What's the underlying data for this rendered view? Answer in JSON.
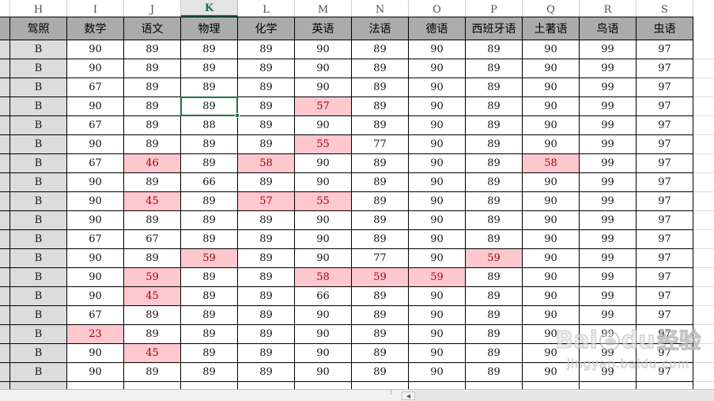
{
  "app": {
    "title": "spreadsheet-grades-view"
  },
  "grid": {
    "column_letters": [
      "H",
      "I",
      "J",
      "K",
      "L",
      "M",
      "N",
      "O",
      "P",
      "Q",
      "R",
      "S"
    ],
    "headers": [
      "驾照",
      "数学",
      "语文",
      "物理",
      "化学",
      "英语",
      "法语",
      "德语",
      "西班牙语",
      "土著语",
      "鸟语",
      "虫语"
    ],
    "rows": [
      [
        "B",
        "90",
        "89",
        "89",
        "89",
        "90",
        "89",
        "90",
        "89",
        "90",
        "99",
        "97"
      ],
      [
        "B",
        "90",
        "89",
        "89",
        "89",
        "90",
        "89",
        "90",
        "89",
        "90",
        "99",
        "97"
      ],
      [
        "B",
        "67",
        "89",
        "89",
        "89",
        "90",
        "89",
        "90",
        "89",
        "90",
        "99",
        "97"
      ],
      [
        "B",
        "90",
        "89",
        "89",
        "89",
        "57",
        "89",
        "90",
        "89",
        "90",
        "99",
        "97"
      ],
      [
        "B",
        "67",
        "89",
        "88",
        "89",
        "90",
        "89",
        "90",
        "89",
        "90",
        "99",
        "97"
      ],
      [
        "B",
        "90",
        "89",
        "89",
        "89",
        "55",
        "77",
        "90",
        "89",
        "90",
        "99",
        "97"
      ],
      [
        "B",
        "67",
        "46",
        "89",
        "58",
        "90",
        "89",
        "90",
        "89",
        "58",
        "99",
        "97"
      ],
      [
        "B",
        "90",
        "89",
        "66",
        "89",
        "90",
        "89",
        "90",
        "89",
        "90",
        "99",
        "97"
      ],
      [
        "B",
        "90",
        "45",
        "89",
        "57",
        "55",
        "89",
        "90",
        "89",
        "90",
        "99",
        "97"
      ],
      [
        "B",
        "90",
        "89",
        "89",
        "89",
        "90",
        "89",
        "90",
        "89",
        "90",
        "99",
        "97"
      ],
      [
        "B",
        "67",
        "67",
        "89",
        "89",
        "90",
        "89",
        "90",
        "89",
        "90",
        "99",
        "97"
      ],
      [
        "B",
        "90",
        "89",
        "59",
        "89",
        "90",
        "77",
        "90",
        "59",
        "90",
        "99",
        "97"
      ],
      [
        "B",
        "90",
        "59",
        "89",
        "89",
        "58",
        "59",
        "59",
        "89",
        "90",
        "99",
        "97"
      ],
      [
        "B",
        "90",
        "45",
        "89",
        "89",
        "66",
        "89",
        "90",
        "89",
        "90",
        "99",
        "97"
      ],
      [
        "B",
        "67",
        "89",
        "89",
        "89",
        "90",
        "89",
        "90",
        "89",
        "90",
        "99",
        "97"
      ],
      [
        "B",
        "23",
        "89",
        "89",
        "89",
        "90",
        "89",
        "90",
        "89",
        "90",
        "99",
        "97"
      ],
      [
        "B",
        "90",
        "45",
        "89",
        "89",
        "90",
        "89",
        "90",
        "89",
        "90",
        "99",
        "97"
      ],
      [
        "B",
        "90",
        "89",
        "89",
        "89",
        "90",
        "89",
        "90",
        "89",
        "90",
        "99",
        "97"
      ]
    ],
    "highlighted_cells": [
      {
        "row": 4,
        "col": "M"
      },
      {
        "row": 6,
        "col": "M"
      },
      {
        "row": 7,
        "col": "J"
      },
      {
        "row": 7,
        "col": "L"
      },
      {
        "row": 7,
        "col": "Q"
      },
      {
        "row": 9,
        "col": "J"
      },
      {
        "row": 9,
        "col": "L"
      },
      {
        "row": 9,
        "col": "M"
      },
      {
        "row": 12,
        "col": "K"
      },
      {
        "row": 12,
        "col": "P"
      },
      {
        "row": 13,
        "col": "J"
      },
      {
        "row": 13,
        "col": "M"
      },
      {
        "row": 13,
        "col": "N"
      },
      {
        "row": 13,
        "col": "O"
      },
      {
        "row": 14,
        "col": "J"
      },
      {
        "row": 16,
        "col": "I"
      },
      {
        "row": 17,
        "col": "J"
      }
    ],
    "selected_cell": {
      "row": 4,
      "col": "K",
      "value": "89"
    }
  },
  "colors": {
    "header_fill": "#ababab",
    "strip_fill": "#dcdcdc",
    "highlight_fill": "#ffc7ce",
    "highlight_text": "#9c0006",
    "selection_green": "#217346"
  },
  "scrollbar": {
    "left_arrow": "◀",
    "splitter_dots": "⁞"
  },
  "watermark": {
    "brand_left": "Bai",
    "brand_right": "du",
    "brand_cn": "经验",
    "url": "jingyan.baidu.com"
  }
}
